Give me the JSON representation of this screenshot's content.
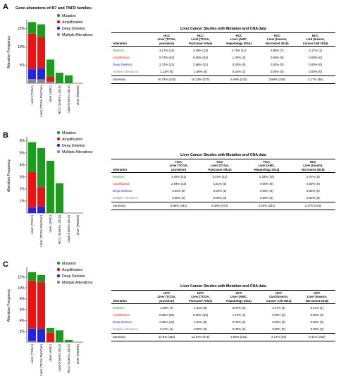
{
  "figure_title": "Gene alterations of B7 and TNFR families",
  "ylabel": "Alteration Frequency",
  "legend_labels": [
    "Mutation",
    "Amplification",
    "Deep Deletion",
    "Multiple Alterations"
  ],
  "colors": {
    "mutation": "#1a9e1a",
    "amplification": "#ee1111",
    "deep_deletion": "#2222ee",
    "multiple": "#888888"
  },
  "panels": [
    {
      "letter": "A",
      "table": {
        "title": "Liver Cancer Studies with Mutation and CNA data",
        "headers": [
          "Alteration",
          "HCC\nLiver (TCGA,\nprovision)",
          "HCC\nLiver (TCGA,\nPanCaner Atlas)",
          "HCC\nLiver (AMC,\nHepatology 2014)",
          "HCC\nLiver (Inserm,\nNat Genet 2015)",
          "HCC\nLiad (Inserm,\nCancer Cell 2014)"
        ],
        "rows": [
          {
            "label": "Mutation",
            "kind": "mutation",
            "cells": [
              "3.17% (14)",
              "3.49% (13)",
              "4.76% (11)",
              "2.88% (7)",
              "2.17% (1)"
            ]
          },
          {
            "label": "Amplification",
            "kind": "amplification",
            "cells": [
              "9.73% (43)",
              "8.60% (32)",
              "1.30% (3)",
              "0.00% (0)",
              "0.00% (0)"
            ]
          },
          {
            "label": "Deep Deletion",
            "kind": "deep",
            "cells": [
              "2.71% (12)",
              "2.96% (11)",
              "0.00% (0)",
              "0.00% (0)",
              "0.00% (0)"
            ]
          },
          {
            "label": "Multiple Alterations",
            "kind": "multi",
            "cells": [
              "1.13% (5)",
              "1.08% (4)",
              "0.43% (1)",
              "0.00% (0)",
              "0.00% (0)"
            ]
          }
        ],
        "summary": {
          "label": "Summary",
          "cells": [
            "16.74% (442)",
            "16.13% (372)",
            "6.49% (231)",
            "2.88% (243)",
            "2.17% (46)"
          ]
        }
      }
    },
    {
      "letter": "B",
      "table": {
        "title": "Liver Cancer Studies with Mutation and CNA data",
        "headers": [
          "Alteration",
          "HCC\nLiver (TCGA,\nprovision)",
          "HCC\nLiver (TCGA,\nPanCaner Atlas)",
          "HCC\nLiver (AMC,\nHepatology 2014)",
          "HCC\nLiver (Inserm,\nNat Genet 2015)"
        ],
        "rows": [
          {
            "label": "Mutation",
            "kind": "mutation",
            "cells": [
              "2.49% (11)",
              "3.23% (12)",
              "4.33% (10)",
              "2.47% (6)"
            ]
          },
          {
            "label": "Amplification",
            "kind": "amplification",
            "cells": [
              "2.94% (13)",
              "1.61% (6)",
              "0.00% (0)",
              "0.00% (0)"
            ]
          },
          {
            "label": "Deep Deletion",
            "kind": "deep",
            "cells": [
              "0.45% (2)",
              "0.54% (2)",
              "0.00% (0)",
              "0.00% (0)"
            ]
          },
          {
            "label": "Multiple Alterations",
            "kind": "multi",
            "cells": [
              "0.00% (0)",
              "0.00% (0)",
              "0.00% (0)",
              "0.00% (0)"
            ]
          }
        ],
        "summary": {
          "label": "Summary",
          "cells": [
            "5.88% (442)",
            "5.38% (372)",
            "4.33% (231)",
            "2.47% (243)"
          ]
        }
      }
    },
    {
      "letter": "C",
      "table": {
        "title": "Liver Cancer Studies with Mutation and CNA data",
        "headers": [
          "Alteration",
          "HCC\nLiver (TCGA,\nprovision)",
          "HCC\nLiver (TCGA,\nPanCaner Atlas)",
          "HCC\nLiver (AMC,\nHepatology 2014)",
          "HCC\nLiad (Inserm,\nCancer Cell 2014)",
          "HCC\nLiver (Inserm,\nNat Genet 2015)"
        ],
        "rows": [
          {
            "label": "Mutation",
            "kind": "mutation",
            "cells": [
              "1.58% (7)",
              "1.34% (5)",
              "0.87% (2)",
              "2.17% (1)",
              "0.41% (1)"
            ]
          },
          {
            "label": "Amplification",
            "kind": "amplification",
            "cells": [
              "8.82% (39)",
              "8.60% (32)",
              "1.73% (4)",
              "0.00% (0)",
              "0.00% (0)"
            ]
          },
          {
            "label": "Deep Deletion",
            "kind": "deep",
            "cells": [
              "2.26% (10)",
              "2.42% (9)",
              "0.00% (0)",
              "0.00% (0)",
              "0.00% (0)"
            ]
          },
          {
            "label": "Multiple Alterations",
            "kind": "multi",
            "cells": [
              "0.23% (1)",
              "0.00% (0)",
              "0.00% (0)",
              "0.00% (0)",
              "0.00% (0)"
            ]
          }
        ],
        "summary": {
          "label": "Summary",
          "cells": [
            "12.9% (442)",
            "12.37% (372)",
            "2.60% (231)",
            "2.17% (46)",
            "0.41% (243)"
          ]
        }
      }
    }
  ],
  "chart_data": [
    {
      "type": "bar",
      "stacked": true,
      "panel": "A",
      "categories": [
        "Liver (TCGA)",
        "Liver (TCGA PanCan)",
        "Liver (AMC)",
        "HCC (Inserm, 2015)",
        "Liad (Inserm 2014)",
        "Liver (RIKEN)"
      ],
      "ylabel": "Alteration Frequency",
      "ylim": [
        0,
        17
      ],
      "yticks": [
        5,
        10,
        15
      ],
      "ytick_labels": [
        "5%",
        "10%",
        "15%"
      ],
      "legend_position": "top",
      "series": [
        {
          "name": "Multiple Alterations",
          "key": "multiple",
          "values": [
            1.13,
            1.08,
            0.43,
            0,
            0,
            0
          ]
        },
        {
          "name": "Deep Deletion",
          "key": "deep_deletion",
          "values": [
            2.71,
            2.96,
            0,
            0,
            0,
            0
          ]
        },
        {
          "name": "Amplification",
          "key": "amplification",
          "values": [
            9.73,
            8.6,
            1.3,
            0,
            0,
            0
          ]
        },
        {
          "name": "Mutation",
          "key": "mutation",
          "values": [
            3.17,
            3.49,
            4.76,
            2.88,
            2.17,
            0
          ]
        }
      ]
    },
    {
      "type": "bar",
      "stacked": true,
      "panel": "B",
      "categories": [
        "Liver (TCGA)",
        "Liver (TCGA PanCan)",
        "Liver (AMC)",
        "HCC (Inserm, 2015)",
        "Liad (Inserm 2014)",
        "Liver (RIKEN)"
      ],
      "ylabel": "Alteration Frequency",
      "ylim": [
        0,
        6.2
      ],
      "yticks": [
        1,
        2,
        3,
        4,
        5,
        6
      ],
      "ytick_labels": [
        "1%",
        "2%",
        "3%",
        "4%",
        "5%",
        "6%"
      ],
      "legend_position": "top",
      "series": [
        {
          "name": "Multiple Alterations",
          "key": "multiple",
          "values": [
            0,
            0,
            0,
            0,
            0,
            0
          ]
        },
        {
          "name": "Deep Deletion",
          "key": "deep_deletion",
          "values": [
            0.45,
            0.54,
            0,
            0,
            0,
            0
          ]
        },
        {
          "name": "Amplification",
          "key": "amplification",
          "values": [
            2.94,
            1.61,
            0,
            0,
            0,
            0
          ]
        },
        {
          "name": "Mutation",
          "key": "mutation",
          "values": [
            2.49,
            3.23,
            4.33,
            2.47,
            0,
            0
          ]
        }
      ]
    },
    {
      "type": "bar",
      "stacked": true,
      "panel": "C",
      "categories": [
        "Liver (TCGA)",
        "Liver (TCGA PanCan)",
        "Liver (AMC)",
        "Liad (Inserm 2014)",
        "HCC (Inserm, 2015)",
        "Liver (RIKEN)"
      ],
      "ylabel": "Alteration Frequency",
      "ylim": [
        0,
        13.5
      ],
      "yticks": [
        2,
        4,
        6,
        8,
        10,
        12
      ],
      "ytick_labels": [
        "2%",
        "4%",
        "6%",
        "8%",
        "10%",
        "12%"
      ],
      "legend_position": "top",
      "series": [
        {
          "name": "Multiple Alterations",
          "key": "multiple",
          "values": [
            0.23,
            0,
            0,
            0,
            0,
            0
          ]
        },
        {
          "name": "Deep Deletion",
          "key": "deep_deletion",
          "values": [
            2.26,
            2.42,
            0,
            0,
            0,
            0
          ]
        },
        {
          "name": "Amplification",
          "key": "amplification",
          "values": [
            8.82,
            8.6,
            1.73,
            0,
            0,
            0
          ]
        },
        {
          "name": "Mutation",
          "key": "mutation",
          "values": [
            1.58,
            1.34,
            0.87,
            2.17,
            0.41,
            0
          ]
        }
      ]
    }
  ]
}
